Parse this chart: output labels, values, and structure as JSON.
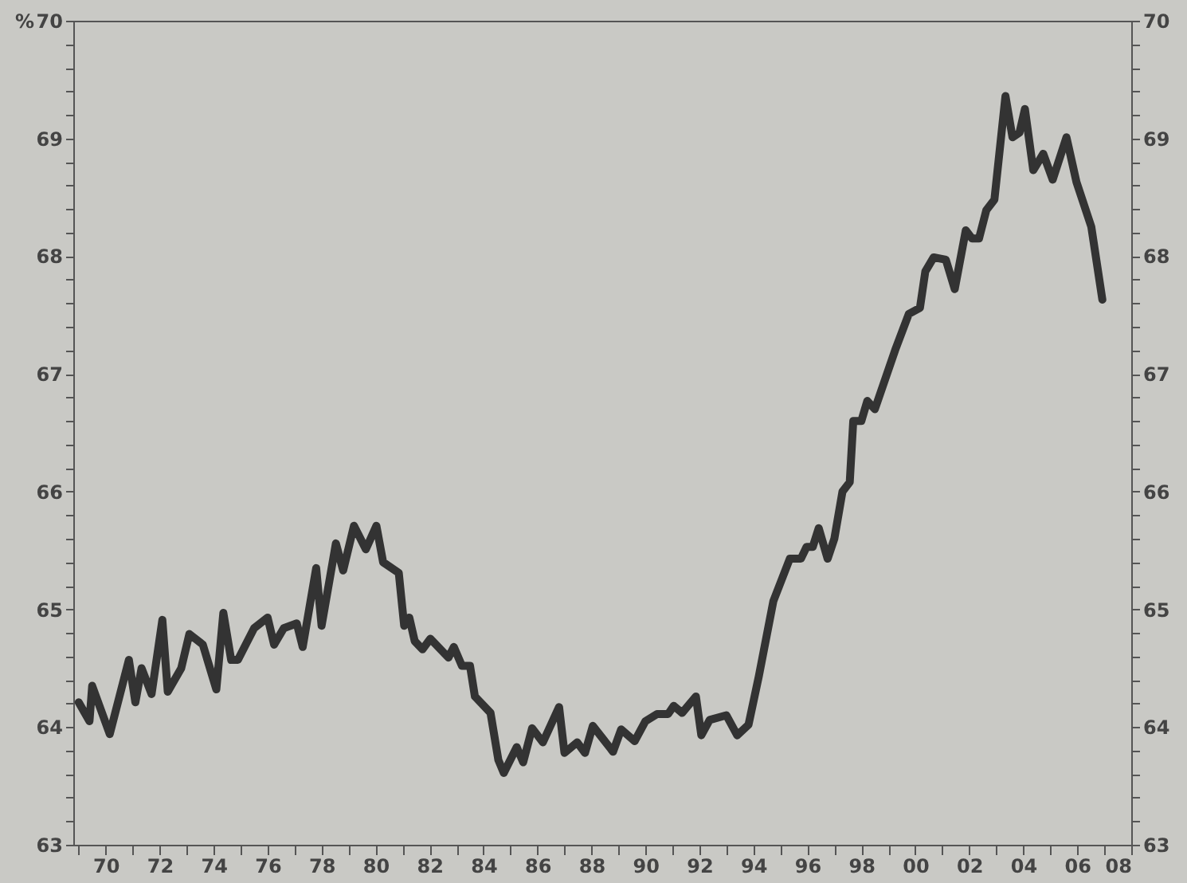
{
  "chart_data": {
    "type": "line",
    "ylabel": "%",
    "x": [
      1969.0,
      1969.4,
      1969.5,
      1970.15,
      1970.86,
      1971.1,
      1971.33,
      1971.7,
      1972.1,
      1972.3,
      1972.8,
      1973.1,
      1973.6,
      1974.1,
      1974.36,
      1974.65,
      1974.9,
      1975.5,
      1976.0,
      1976.24,
      1976.6,
      1977.08,
      1977.3,
      1977.8,
      1978.0,
      1978.53,
      1978.8,
      1979.2,
      1979.64,
      1980.03,
      1980.28,
      1980.86,
      1981.06,
      1981.25,
      1981.45,
      1981.74,
      1982.03,
      1982.7,
      1982.9,
      1983.2,
      1983.5,
      1983.68,
      1984.26,
      1984.55,
      1984.75,
      1985.23,
      1985.47,
      1985.8,
      1986.2,
      1986.8,
      1987.0,
      1987.47,
      1987.76,
      1988.05,
      1988.8,
      1989.1,
      1989.6,
      1990.0,
      1990.43,
      1990.84,
      1991.05,
      1991.36,
      1991.87,
      1992.07,
      1992.38,
      1993.0,
      1993.4,
      1993.82,
      1994.2,
      1994.74,
      1995.35,
      1995.76,
      1995.97,
      1996.2,
      1996.42,
      1996.75,
      1997.0,
      1997.3,
      1997.57,
      1997.7,
      1998.0,
      1998.22,
      1998.5,
      1999.25,
      1999.76,
      2000.17,
      2000.37,
      2000.68,
      2001.13,
      2001.46,
      2001.87,
      2002.1,
      2002.36,
      2002.63,
      2002.93,
      2003.34,
      2003.6,
      2003.86,
      2004.06,
      2004.37,
      2004.74,
      2005.09,
      2005.6,
      2005.97,
      2006.52,
      2006.93
    ],
    "series": [
      {
        "color": "#333333",
        "values": [
          64.21,
          64.05,
          64.35,
          63.94,
          64.57,
          64.21,
          64.5,
          64.28,
          64.91,
          64.3,
          64.5,
          64.79,
          64.7,
          64.32,
          64.97,
          64.57,
          64.57,
          64.84,
          64.93,
          64.7,
          64.84,
          64.88,
          64.68,
          65.35,
          64.86,
          65.56,
          65.33,
          65.71,
          65.51,
          65.71,
          65.4,
          65.31,
          64.86,
          64.93,
          64.73,
          64.66,
          64.75,
          64.59,
          64.68,
          64.52,
          64.52,
          64.26,
          64.12,
          63.72,
          63.61,
          63.83,
          63.7,
          63.99,
          63.87,
          64.17,
          63.78,
          63.87,
          63.78,
          64.01,
          63.79,
          63.98,
          63.88,
          64.05,
          64.11,
          64.11,
          64.18,
          64.12,
          64.26,
          63.93,
          64.06,
          64.1,
          63.93,
          64.02,
          64.43,
          65.07,
          65.43,
          65.43,
          65.53,
          65.53,
          65.69,
          65.43,
          65.6,
          66.0,
          66.08,
          66.6,
          66.6,
          66.77,
          66.7,
          67.2,
          67.51,
          67.56,
          67.87,
          67.99,
          67.97,
          67.72,
          68.22,
          68.15,
          68.15,
          68.39,
          68.48,
          69.36,
          69.01,
          69.05,
          69.25,
          68.73,
          68.87,
          68.65,
          69.01,
          68.63,
          68.25,
          67.63
        ]
      }
    ],
    "xlim": [
      1968.8,
      2008
    ],
    "xticks": [
      {
        "value": 1969,
        "label": null
      },
      {
        "value": 1970,
        "label": "70"
      },
      {
        "value": 1971,
        "label": null
      },
      {
        "value": 1972,
        "label": "72"
      },
      {
        "value": 1973,
        "label": null
      },
      {
        "value": 1974,
        "label": "74"
      },
      {
        "value": 1975,
        "label": null
      },
      {
        "value": 1976,
        "label": "76"
      },
      {
        "value": 1977,
        "label": null
      },
      {
        "value": 1978,
        "label": "78"
      },
      {
        "value": 1979,
        "label": null
      },
      {
        "value": 1980,
        "label": "80"
      },
      {
        "value": 1981,
        "label": null
      },
      {
        "value": 1982,
        "label": "82"
      },
      {
        "value": 1983,
        "label": null
      },
      {
        "value": 1984,
        "label": "84"
      },
      {
        "value": 1985,
        "label": null
      },
      {
        "value": 1986,
        "label": "86"
      },
      {
        "value": 1987,
        "label": null
      },
      {
        "value": 1988,
        "label": "88"
      },
      {
        "value": 1989,
        "label": null
      },
      {
        "value": 1990,
        "label": "90"
      },
      {
        "value": 1991,
        "label": null
      },
      {
        "value": 1992,
        "label": "92"
      },
      {
        "value": 1993,
        "label": null
      },
      {
        "value": 1994,
        "label": "94"
      },
      {
        "value": 1995,
        "label": null
      },
      {
        "value": 1996,
        "label": "96"
      },
      {
        "value": 1997,
        "label": null
      },
      {
        "value": 1998,
        "label": "98"
      },
      {
        "value": 1999,
        "label": null
      },
      {
        "value": 2000,
        "label": "00"
      },
      {
        "value": 2001,
        "label": null
      },
      {
        "value": 2002,
        "label": "02"
      },
      {
        "value": 2003,
        "label": null
      },
      {
        "value": 2004,
        "label": "04"
      },
      {
        "value": 2005,
        "label": null
      },
      {
        "value": 2006,
        "label": "06"
      },
      {
        "value": 2007,
        "label": null
      },
      {
        "value": 2008,
        "label": "08"
      }
    ],
    "ylim": [
      63,
      70
    ],
    "yticks": [
      63,
      {
        "value": 63.2,
        "label": null
      },
      {
        "value": 63.4,
        "label": null
      },
      {
        "value": 63.6,
        "label": null
      },
      {
        "value": 63.8,
        "label": null
      },
      64,
      {
        "value": 64.2,
        "label": null
      },
      {
        "value": 64.4,
        "label": null
      },
      {
        "value": 64.6,
        "label": null
      },
      {
        "value": 64.8,
        "label": null
      },
      65,
      {
        "value": 65.2,
        "label": null
      },
      {
        "value": 65.4,
        "label": null
      },
      {
        "value": 65.6,
        "label": null
      },
      {
        "value": 65.8,
        "label": null
      },
      66,
      {
        "value": 66.2,
        "label": null
      },
      {
        "value": 66.4,
        "label": null
      },
      {
        "value": 66.6,
        "label": null
      },
      {
        "value": 66.8,
        "label": null
      },
      67,
      {
        "value": 67.2,
        "label": null
      },
      {
        "value": 67.4,
        "label": null
      },
      {
        "value": 67.6,
        "label": null
      },
      {
        "value": 67.8,
        "label": null
      },
      68,
      {
        "value": 68.2,
        "label": null
      },
      {
        "value": 68.4,
        "label": null
      },
      {
        "value": 68.6,
        "label": null
      },
      {
        "value": 68.8,
        "label": null
      },
      69,
      {
        "value": 69.2,
        "label": null
      },
      {
        "value": 69.4,
        "label": null
      },
      {
        "value": 69.6,
        "label": null
      },
      {
        "value": 69.8,
        "label": null
      },
      70
    ],
    "y2lim": [
      63,
      70
    ],
    "y2ticks": [
      63,
      {
        "value": 63.2,
        "label": null
      },
      {
        "value": 63.4,
        "label": null
      },
      {
        "value": 63.6,
        "label": null
      },
      {
        "value": 63.8,
        "label": null
      },
      64,
      {
        "value": 64.2,
        "label": null
      },
      {
        "value": 64.4,
        "label": null
      },
      {
        "value": 64.6,
        "label": null
      },
      {
        "value": 64.8,
        "label": null
      },
      65,
      {
        "value": 65.2,
        "label": null
      },
      {
        "value": 65.4,
        "label": null
      },
      {
        "value": 65.6,
        "label": null
      },
      {
        "value": 65.8,
        "label": null
      },
      66,
      {
        "value": 66.2,
        "label": null
      },
      {
        "value": 66.4,
        "label": null
      },
      {
        "value": 66.6,
        "label": null
      },
      {
        "value": 66.8,
        "label": null
      },
      67,
      {
        "value": 67.2,
        "label": null
      },
      {
        "value": 67.4,
        "label": null
      },
      {
        "value": 67.6,
        "label": null
      },
      {
        "value": 67.8,
        "label": null
      },
      68,
      {
        "value": 68.2,
        "label": null
      },
      {
        "value": 68.4,
        "label": null
      },
      {
        "value": 68.6,
        "label": null
      },
      {
        "value": 68.8,
        "label": null
      },
      69,
      {
        "value": 69.2,
        "label": null
      },
      {
        "value": 69.4,
        "label": null
      },
      {
        "value": 69.6,
        "label": null
      },
      {
        "value": 69.8,
        "label": null
      },
      70
    ],
    "grid": false,
    "line_style": "solid",
    "marker": "none"
  }
}
